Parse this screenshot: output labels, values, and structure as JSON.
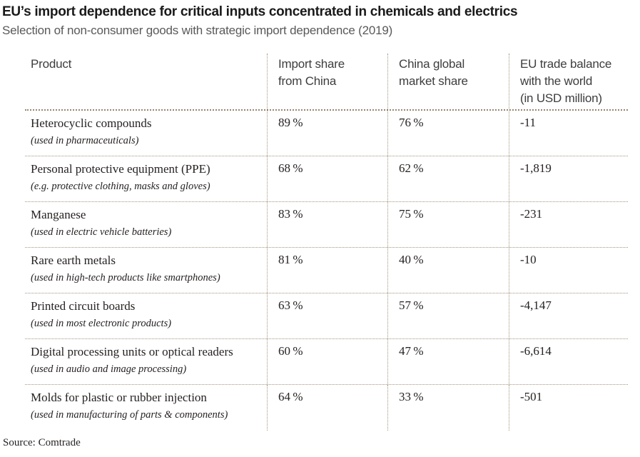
{
  "page": {
    "title": "EU’s import dependence for critical inputs concentrated in chemicals and electrics",
    "subtitle": "Selection of non-consumer goods with strategic import dependence (2019)",
    "source": "Source: Comtrade"
  },
  "colors": {
    "dotted_line": "#a3947e",
    "header_rule": "#96856f",
    "title_text": "#1a1a1a",
    "subtitle_text": "#58595b",
    "body_text": "#262221",
    "background": "#ffffff"
  },
  "table": {
    "headers": [
      {
        "lines": [
          "Product"
        ]
      },
      {
        "lines": [
          "Import share",
          "from China"
        ]
      },
      {
        "lines": [
          "China global",
          "market share"
        ]
      },
      {
        "lines": [
          "EU trade balance",
          "with the world",
          "(in USD million)"
        ]
      }
    ],
    "rows": [
      {
        "product": "Heterocyclic compounds",
        "note": "(used in pharmaceuticals)",
        "import_share": "89 %",
        "china_share": "76 %",
        "trade_balance": "-11"
      },
      {
        "product": "Personal protective equipment (PPE)",
        "note": "(e.g. protective clothing, masks and gloves)",
        "import_share": "68 %",
        "china_share": "62 %",
        "trade_balance": "-1,819"
      },
      {
        "product": "Manganese",
        "note": "(used in electric vehicle batteries)",
        "import_share": "83 %",
        "china_share": "75 %",
        "trade_balance": "-231"
      },
      {
        "product": "Rare earth metals",
        "note": "(used in high-tech products like smartphones)",
        "import_share": "81 %",
        "china_share": "40 %",
        "trade_balance": "-10"
      },
      {
        "product": "Printed circuit boards",
        "note": "(used in most electronic products)",
        "import_share": "63 %",
        "china_share": "57 %",
        "trade_balance": "-4,147"
      },
      {
        "product": "Digital processing units or optical readers",
        "note": "(used in audio and image processing)",
        "import_share": "60 %",
        "china_share": "47 %",
        "trade_balance": "-6,614"
      },
      {
        "product": "Molds for plastic or rubber injection",
        "note": "(used in manufacturing of parts & components)",
        "import_share": "64 %",
        "china_share": "33 %",
        "trade_balance": "-501"
      }
    ]
  },
  "chart_data": {
    "type": "table",
    "title": "EU’s import dependence for critical inputs concentrated in chemicals and electrics",
    "subtitle": "Selection of non-consumer goods with strategic import dependence (2019)",
    "source": "Source: Comtrade",
    "columns": [
      "Product",
      "Import share from China",
      "China global market share",
      "EU trade balance with the world (in USD million)"
    ],
    "rows": [
      [
        "Heterocyclic compounds (used in pharmaceuticals)",
        "89 %",
        "76 %",
        -11
      ],
      [
        "Personal protective equipment (PPE) (e.g. protective clothing, masks and gloves)",
        "68 %",
        "62 %",
        -1819
      ],
      [
        "Manganese (used in electric vehicle batteries)",
        "83 %",
        "75 %",
        -231
      ],
      [
        "Rare earth metals (used in high-tech products like smartphones)",
        "81 %",
        "40 %",
        -10
      ],
      [
        "Printed circuit boards (used in most electronic products)",
        "63 %",
        "57 %",
        -4147
      ],
      [
        "Digital processing units or optical readers (used in audio and image processing)",
        "60 %",
        "47 %",
        -6614
      ],
      [
        "Molds for plastic or rubber injection (used in manufacturing of parts & components)",
        "64 %",
        "33 %",
        -501
      ]
    ]
  }
}
